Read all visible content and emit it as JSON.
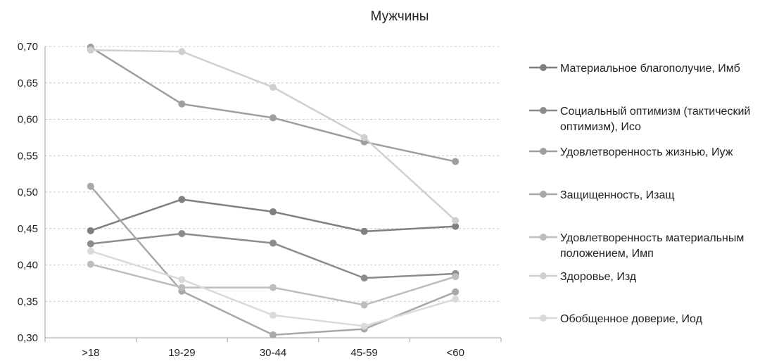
{
  "chart_data": {
    "type": "line",
    "title": "Мужчины",
    "xlabel": "",
    "ylabel": "",
    "categories": [
      ">18",
      "19-29",
      "30-44",
      "45-59",
      "<60"
    ],
    "ylim": [
      0.3,
      0.7
    ],
    "yticks": [
      "0,70",
      "0,65",
      "0,60",
      "0,55",
      "0,50",
      "0,45",
      "0,40",
      "0,35",
      "0,30"
    ],
    "ytick_values": [
      0.7,
      0.65,
      0.6,
      0.55,
      0.5,
      0.45,
      0.4,
      0.35,
      0.3
    ],
    "grid": "horizontal dashed",
    "legend_position": "right",
    "series": [
      {
        "name": "Материальное благополучие, Имб",
        "legend_lines": [
          "Материальное благополучие, Имб"
        ],
        "color": "#7f7f7f",
        "values": [
          0.447,
          0.49,
          0.473,
          0.446,
          0.453
        ]
      },
      {
        "name": "Социальный оптимизм (тактический оптимизм), Исо",
        "legend_lines": [
          "Социальный оптимизм (тактический",
          "оптимизм), Исо"
        ],
        "color": "#8c8c8c",
        "values": [
          0.429,
          0.443,
          0.43,
          0.382,
          0.388
        ]
      },
      {
        "name": "Удовлетворенность жизнью, Иуж",
        "legend_lines": [
          "Удовлетворенность жизнью, Иуж"
        ],
        "color": "#9e9e9e",
        "values": [
          0.699,
          0.621,
          0.602,
          0.569,
          0.542
        ]
      },
      {
        "name": "Защищенность, Изащ",
        "legend_lines": [
          "Защищенность, Изащ"
        ],
        "color": "#a8a8a8",
        "values": [
          0.508,
          0.364,
          0.304,
          0.312,
          0.363
        ]
      },
      {
        "name": "Удовлетворенность материальным положением, Имп",
        "legend_lines": [
          "Удовлетворенность материальным",
          "положением, Имп"
        ],
        "color": "#bdbdbd",
        "values": [
          0.401,
          0.369,
          0.369,
          0.345,
          0.384
        ]
      },
      {
        "name": "Здоровье, Изд",
        "legend_lines": [
          "Здоровье, Изд"
        ],
        "color": "#cfcfcf",
        "values": [
          0.695,
          0.693,
          0.644,
          0.575,
          0.461
        ]
      },
      {
        "name": "Обобщенное доверие, Иод",
        "legend_lines": [
          "Обобщенное доверие, Иод"
        ],
        "color": "#dadada",
        "values": [
          0.419,
          0.38,
          0.331,
          0.316,
          0.353
        ]
      }
    ]
  }
}
